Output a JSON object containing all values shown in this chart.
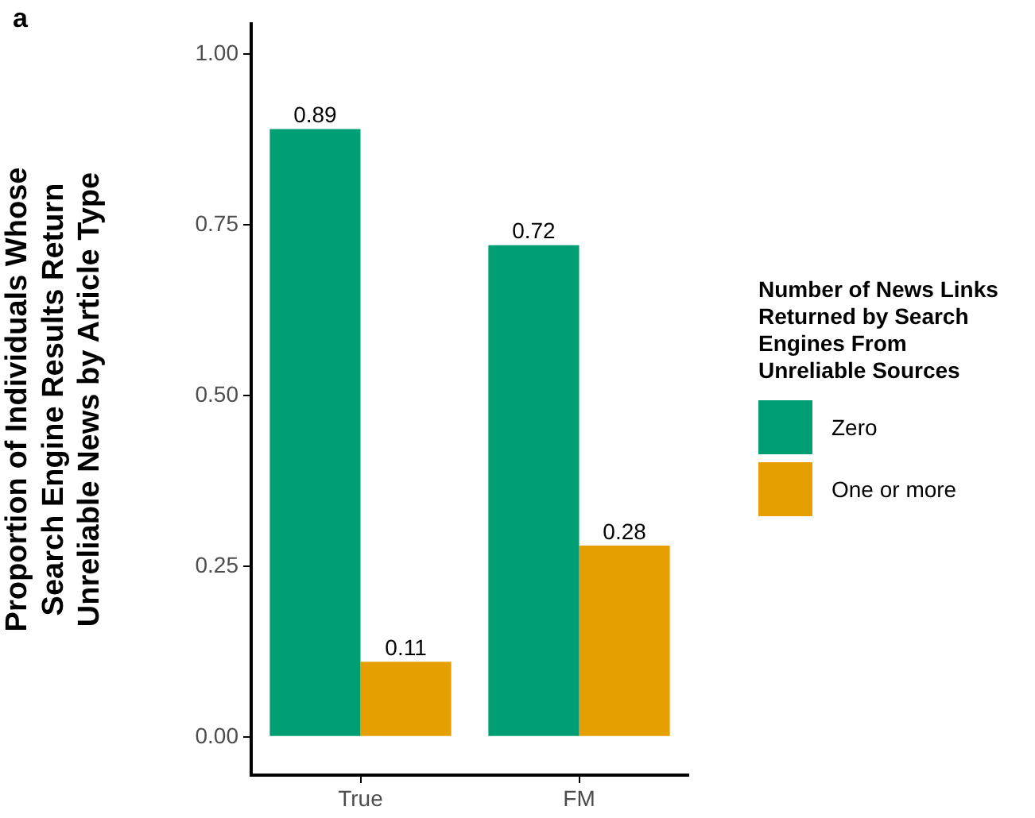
{
  "chart_data": {
    "type": "bar",
    "ylabel": "Proportion of Individuals Whose\nSearch Engine Results Return\nUnreliable News by Article Type",
    "legend_title": "Number of News Links\nReturned by Search\nEngines From\nUnreliable Sources",
    "annotations": [
      "a"
    ],
    "categories": [
      "True",
      "FM"
    ],
    "series": [
      {
        "name": "Zero",
        "color": "#009e73",
        "values": [
          0.89,
          0.72
        ]
      },
      {
        "name": "One or more",
        "color": "#e69f00",
        "values": [
          0.11,
          0.28
        ]
      }
    ],
    "ylim": [
      -0.056,
      1.044
    ],
    "yticks": [
      {
        "value": 0,
        "label": "0.00"
      },
      {
        "value": 0.25,
        "label": "0.25"
      },
      {
        "value": 0.5,
        "label": "0.50"
      },
      {
        "value": 0.75,
        "label": "0.75"
      },
      {
        "value": 1,
        "label": "1.00"
      }
    ],
    "grid": false,
    "legend": "right",
    "data_labels": true
  }
}
